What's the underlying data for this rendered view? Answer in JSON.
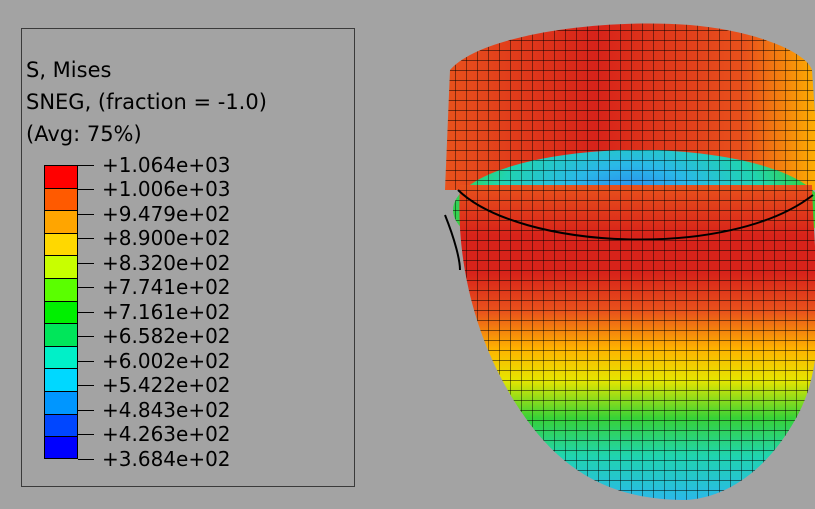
{
  "legend": {
    "title_lines": [
      "S, Mises",
      "SNEG, (fraction = -1.0)",
      "(Avg: 75%)"
    ],
    "tick_labels": [
      "+1.064e+03",
      "+1.006e+03",
      "+9.479e+02",
      "+8.900e+02",
      "+8.320e+02",
      "+7.741e+02",
      "+7.161e+02",
      "+6.582e+02",
      "+6.002e+02",
      "+5.422e+02",
      "+4.843e+02",
      "+4.263e+02",
      "+3.684e+02"
    ],
    "colors": [
      "#ff0000",
      "#ff5a00",
      "#ffa500",
      "#ffd800",
      "#c8ff00",
      "#5aff00",
      "#00f000",
      "#00e65a",
      "#00f0c8",
      "#00d8ff",
      "#0096ff",
      "#0046ff",
      "#0000ff"
    ]
  },
  "model": {
    "part": "cup",
    "contour_colors": {
      "high": "#d8231a",
      "upper": "#e9521c",
      "mid": "#ffb300",
      "yellow": "#e6e600",
      "green": "#37d237",
      "teal": "#20d4b0",
      "cyan": "#2ab8e8",
      "blue": "#2a7ef0"
    }
  }
}
